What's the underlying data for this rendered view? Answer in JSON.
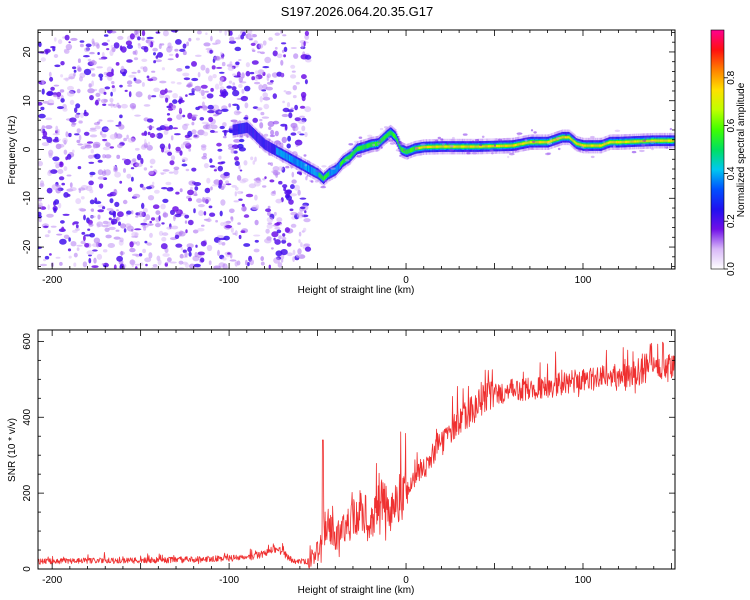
{
  "figure_title": "S197.2026.064.20.35.G17",
  "colors": {
    "snr_line": "#ef3030",
    "axis": "#000000",
    "background": "#ffffff"
  },
  "chart_data": [
    {
      "type": "heatmap",
      "title": "S197.2026.064.20.35.G17",
      "xlabel": "Height of straight line (km)",
      "ylabel": "Frequency (Hz)",
      "xlim": [
        -208,
        152
      ],
      "ylim": [
        -24.5,
        24.5
      ],
      "x_ticks": [
        -200,
        -100,
        0,
        100
      ],
      "y_ticks": [
        -20,
        -10,
        0,
        10,
        20
      ],
      "colorbar": {
        "label": "Normalized spectral amplitude",
        "range": [
          0.0,
          1.0
        ],
        "ticks": [
          "0.0",
          "0.2",
          "0.4",
          "0.6",
          "0.8"
        ],
        "tick_values": [
          0.0,
          0.2,
          0.4,
          0.6,
          0.8
        ],
        "colormap": [
          "#ffffff",
          "#d8b8f8",
          "#7010e8",
          "#2010f0",
          "#0050ff",
          "#00c8f0",
          "#00e060",
          "#40ff00",
          "#c0ff00",
          "#ffe000",
          "#ff8000",
          "#ff1010",
          "#ff0090"
        ]
      },
      "ridge": {
        "description": "dominant frequency track",
        "x": [
          -98,
          -90,
          -80,
          -70,
          -60,
          -55,
          -50,
          -47,
          -44,
          -40,
          -36,
          -32,
          -28,
          -24,
          -20,
          -16,
          -12,
          -9,
          -6,
          -3,
          0,
          5,
          10,
          20,
          40,
          60,
          70,
          80,
          88,
          92,
          96,
          100,
          110,
          115,
          120,
          140,
          152
        ],
        "y": [
          4,
          4.5,
          1,
          -1,
          -3,
          -4,
          -5,
          -6,
          -5,
          -4.2,
          -2.5,
          -1.5,
          0.1,
          0.5,
          1,
          1.2,
          2.6,
          3.5,
          2.5,
          0,
          -0.5,
          0.2,
          0.5,
          0.6,
          0.6,
          0.8,
          1.5,
          1.5,
          2.5,
          2.5,
          1.2,
          0.8,
          0.8,
          1.5,
          1.5,
          1.8,
          1.8
        ],
        "amplitude": [
          0.2,
          0.25,
          0.3,
          0.35,
          0.4,
          0.45,
          0.5,
          0.55,
          0.5,
          0.45,
          0.55,
          0.6,
          0.6,
          0.5,
          0.55,
          0.5,
          0.55,
          0.6,
          0.5,
          0.55,
          0.6,
          0.7,
          0.8,
          0.85,
          0.8,
          0.85,
          0.88,
          0.8,
          0.85,
          0.8,
          0.75,
          0.8,
          0.78,
          0.8,
          0.78,
          0.75,
          0.75
        ]
      },
      "noise_region": {
        "x_range": [
          -208,
          -55
        ],
        "note": "scattered low-amplitude purple speckle"
      }
    },
    {
      "type": "line",
      "xlabel": "Height of straight line (km)",
      "ylabel": "SNR (10 * v/v)",
      "xlim": [
        -208,
        152
      ],
      "ylim": [
        0,
        630
      ],
      "x_ticks": [
        -200,
        -100,
        0,
        100
      ],
      "y_ticks": [
        0,
        200,
        400,
        600
      ],
      "series": [
        {
          "name": "SNR",
          "x": [
            -208,
            -180,
            -150,
            -120,
            -100,
            -90,
            -80,
            -75,
            -70,
            -65,
            -60,
            -55,
            -50,
            -45,
            -40,
            -35,
            -30,
            -25,
            -20,
            -15,
            -10,
            -5,
            0,
            5,
            10,
            15,
            20,
            25,
            30,
            35,
            40,
            45,
            50,
            60,
            70,
            80,
            90,
            100,
            110,
            120,
            130,
            140,
            152
          ],
          "values": [
            20,
            22,
            22,
            25,
            28,
            30,
            40,
            55,
            45,
            25,
            18,
            20,
            45,
            120,
            80,
            110,
            130,
            160,
            120,
            190,
            150,
            180,
            200,
            240,
            270,
            300,
            330,
            360,
            390,
            410,
            430,
            450,
            460,
            470,
            475,
            480,
            490,
            500,
            505,
            510,
            515,
            525,
            535
          ],
          "noise": "high-frequency fluctuation, largest spikes near -47 km (~340) and x > 100 (~600)"
        }
      ]
    }
  ]
}
